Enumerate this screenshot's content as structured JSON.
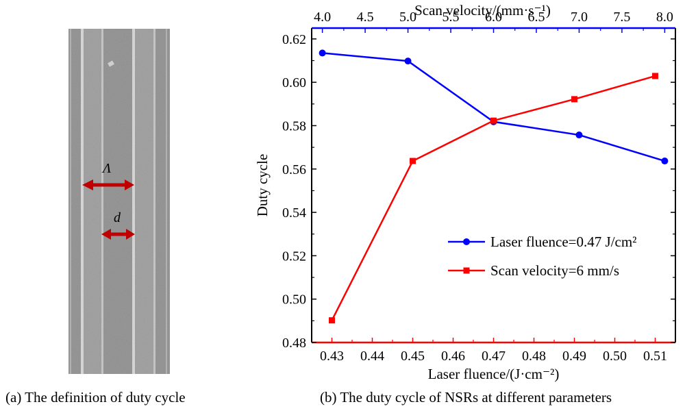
{
  "panel_a": {
    "caption": "(a) The definition of duty cycle",
    "period_label": "Λ",
    "width_label": "d",
    "arrow_color": "#c00000"
  },
  "panel_b": {
    "caption": "(b) The duty cycle of NSRs at different parameters"
  },
  "chart_data": {
    "type": "line",
    "ylabel": "Duty cycle",
    "ylim": [
      0.48,
      0.625
    ],
    "yticks": [
      "0.48",
      "0.50",
      "0.52",
      "0.54",
      "0.56",
      "0.58",
      "0.60",
      "0.62"
    ],
    "bottom_axis": {
      "label": "Laser fluence/(J·cm⁻²)",
      "range": [
        0.425,
        0.515
      ],
      "ticks": [
        "0.43",
        "0.44",
        "0.45",
        "0.46",
        "0.47",
        "0.48",
        "0.49",
        "0.50",
        "0.51"
      ],
      "color": "#ff0000"
    },
    "top_axis": {
      "label": "Scan velocity/(mm·s⁻¹)",
      "range": [
        3.875,
        8.125
      ],
      "ticks": [
        "4.0",
        "4.5",
        "5.0",
        "5.5",
        "6.0",
        "6.5",
        "7.0",
        "7.5",
        "8.0"
      ],
      "color": "#0000ff"
    },
    "series": [
      {
        "name": "Laser fluence=0.47 J/cm²",
        "axis": "top",
        "marker": "circle",
        "color": "#0000ff",
        "x": [
          4.0,
          5.0,
          6.0,
          7.0,
          8.0
        ],
        "y": [
          0.6135,
          0.6098,
          0.5818,
          0.5757,
          0.5637
        ]
      },
      {
        "name": "Scan velocity=6 mm/s",
        "axis": "bottom",
        "marker": "square",
        "color": "#ff0000",
        "x": [
          0.43,
          0.45,
          0.47,
          0.49,
          0.51
        ],
        "y": [
          0.4902,
          0.5637,
          0.5823,
          0.5922,
          0.6029
        ]
      }
    ]
  }
}
